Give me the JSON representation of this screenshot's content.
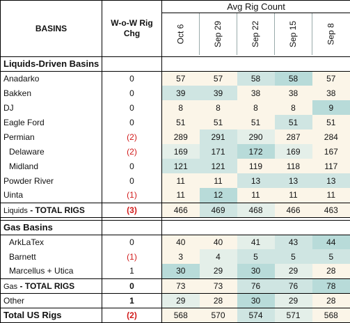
{
  "header": {
    "basins": "BASINS",
    "chg_line1": "W-o-W Rig",
    "chg_line2": "Chg",
    "avg": "Avg Rig Count",
    "dates": [
      "Oct 6",
      "Sep 29",
      "Sep 22",
      "Sep 15",
      "Sep 8"
    ]
  },
  "sections": {
    "liquids": "Liquids-Driven Basins",
    "gas": "Gas Basins"
  },
  "rows": {
    "anadarko": {
      "name": "Anadarko",
      "chg": "0",
      "v": [
        "57",
        "57",
        "58",
        "58",
        "57"
      ]
    },
    "bakken": {
      "name": "Bakken",
      "chg": "0",
      "v": [
        "39",
        "39",
        "38",
        "38",
        "38"
      ]
    },
    "dj": {
      "name": "DJ",
      "chg": "0",
      "v": [
        "8",
        "8",
        "8",
        "8",
        "9"
      ]
    },
    "eagle_ford": {
      "name": "Eagle Ford",
      "chg": "0",
      "v": [
        "51",
        "51",
        "51",
        "51",
        "51"
      ]
    },
    "permian": {
      "name": "Permian",
      "chg": "(2)",
      "v": [
        "289",
        "291",
        "290",
        "287",
        "284"
      ]
    },
    "delaware": {
      "name": "Delaware",
      "chg": "(2)",
      "v": [
        "169",
        "171",
        "172",
        "169",
        "167"
      ]
    },
    "midland": {
      "name": "Midland",
      "chg": "0",
      "v": [
        "121",
        "121",
        "119",
        "118",
        "117"
      ]
    },
    "powder_river": {
      "name": "Powder River",
      "chg": "0",
      "v": [
        "11",
        "11",
        "13",
        "13",
        "13"
      ]
    },
    "uinta": {
      "name": "Uinta",
      "chg": "(1)",
      "v": [
        "11",
        "12",
        "11",
        "11",
        "11"
      ]
    },
    "liquids_total": {
      "prefix": "Liquids",
      "suffix": " - TOTAL RIGS",
      "chg": "(3)",
      "v": [
        "466",
        "469",
        "468",
        "466",
        "463"
      ]
    },
    "arklatex": {
      "name": "ArkLaTex",
      "chg": "0",
      "v": [
        "40",
        "40",
        "41",
        "43",
        "44"
      ]
    },
    "barnett": {
      "name": "Barnett",
      "chg": "(1)",
      "v": [
        "3",
        "4",
        "5",
        "5",
        "5"
      ]
    },
    "marcellus": {
      "name": "Marcellus + Utica",
      "chg": "1",
      "v": [
        "30",
        "29",
        "30",
        "29",
        "28"
      ]
    },
    "gas_total": {
      "prefix": "Gas",
      "suffix": " - TOTAL RIGS",
      "chg": "0",
      "v": [
        "73",
        "73",
        "76",
        "76",
        "78"
      ]
    },
    "other": {
      "name": "Other",
      "chg": "1",
      "v": [
        "29",
        "28",
        "30",
        "29",
        "28"
      ]
    },
    "us_total": {
      "name": "Total US Rigs",
      "chg": "(2)",
      "v": [
        "568",
        "570",
        "574",
        "571",
        "568"
      ]
    }
  },
  "colors": {
    "negative": "#d11a1a",
    "heat_low": "#fbf5e8",
    "heat_high": "#b8dbd9"
  }
}
